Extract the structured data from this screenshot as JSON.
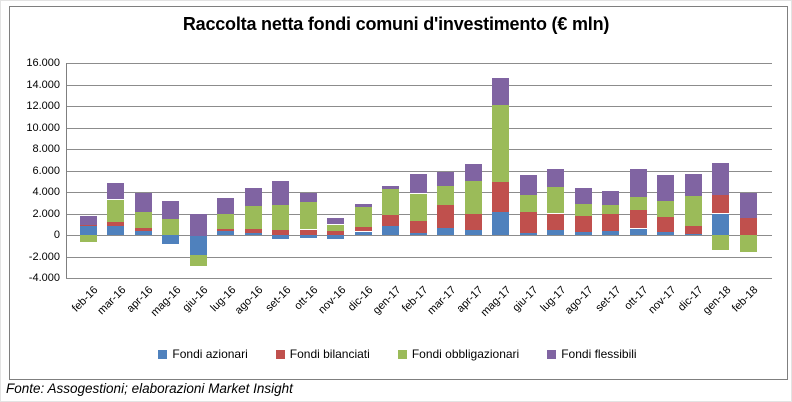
{
  "title": "Raccolta netta fondi comuni d'investimento (€ mln)",
  "footer": {
    "text": "Fonte: Assogestioni; elaborazioni Market Insight"
  },
  "colors": {
    "azionari": "#4F81BD",
    "bilanciati": "#C0504D",
    "obbligazionari": "#9BBB59",
    "flessibili": "#8064A2",
    "gridline": "#8c8c8c",
    "frame_border": "#7f7f7f"
  },
  "chart_data": {
    "type": "bar",
    "stacked": true,
    "title": "Raccolta netta fondi comuni d'investimento (€ mln)",
    "xlabel": "",
    "ylabel": "",
    "grid": true,
    "legend_position": "bottom",
    "ylim": [
      -4000,
      16000
    ],
    "y_tick_step": 2000,
    "y_tick_labels": [
      "16.000",
      "14.000",
      "12.000",
      "10.000",
      "8.000",
      "6.000",
      "4.000",
      "2.000",
      "0",
      "-2.000",
      "-4.000"
    ],
    "categories": [
      "feb-16",
      "mar-16",
      "apr-16",
      "mag-16",
      "giu-16",
      "lug-16",
      "ago-16",
      "set-16",
      "ott-16",
      "nov-16",
      "dic-16",
      "gen-17",
      "feb-17",
      "mar-17",
      "apr-17",
      "mag-17",
      "giu-17",
      "lug-17",
      "ago-17",
      "set-17",
      "ott-17",
      "nov-17",
      "dic-17",
      "gen-18",
      "feb-18"
    ],
    "series": [
      {
        "name": "Fondi azionari",
        "color": "#4F81BD",
        "values": [
          800,
          800,
          350,
          -800,
          -1900,
          350,
          150,
          -400,
          -250,
          -400,
          300,
          900,
          150,
          650,
          500,
          2100,
          150,
          500,
          300,
          450,
          600,
          300,
          100,
          2000,
          0
        ]
      },
      {
        "name": "Fondi bilanciati",
        "color": "#C0504D",
        "values": [
          100,
          500,
          300,
          0,
          0,
          200,
          400,
          500,
          500,
          400,
          400,
          1000,
          1200,
          2100,
          1450,
          2800,
          2050,
          1500,
          1500,
          1550,
          1700,
          1400,
          800,
          1700,
          1650
        ]
      },
      {
        "name": "Fondi obbligazionari",
        "color": "#9BBB59",
        "values": [
          -650,
          2000,
          1450,
          1500,
          -1000,
          1400,
          2200,
          2300,
          2550,
          550,
          1900,
          2400,
          2500,
          1800,
          3100,
          7200,
          1550,
          2450,
          1100,
          800,
          1200,
          1500,
          2750,
          -1400,
          -1600
        ]
      },
      {
        "name": "Fondi flessibili",
        "color": "#8064A2",
        "values": [
          850,
          1500,
          1800,
          1650,
          2000,
          1450,
          1650,
          2200,
          850,
          600,
          300,
          300,
          1800,
          1300,
          1600,
          2500,
          1850,
          1700,
          1500,
          1300,
          2600,
          2400,
          2050,
          3000,
          2300
        ]
      }
    ]
  }
}
